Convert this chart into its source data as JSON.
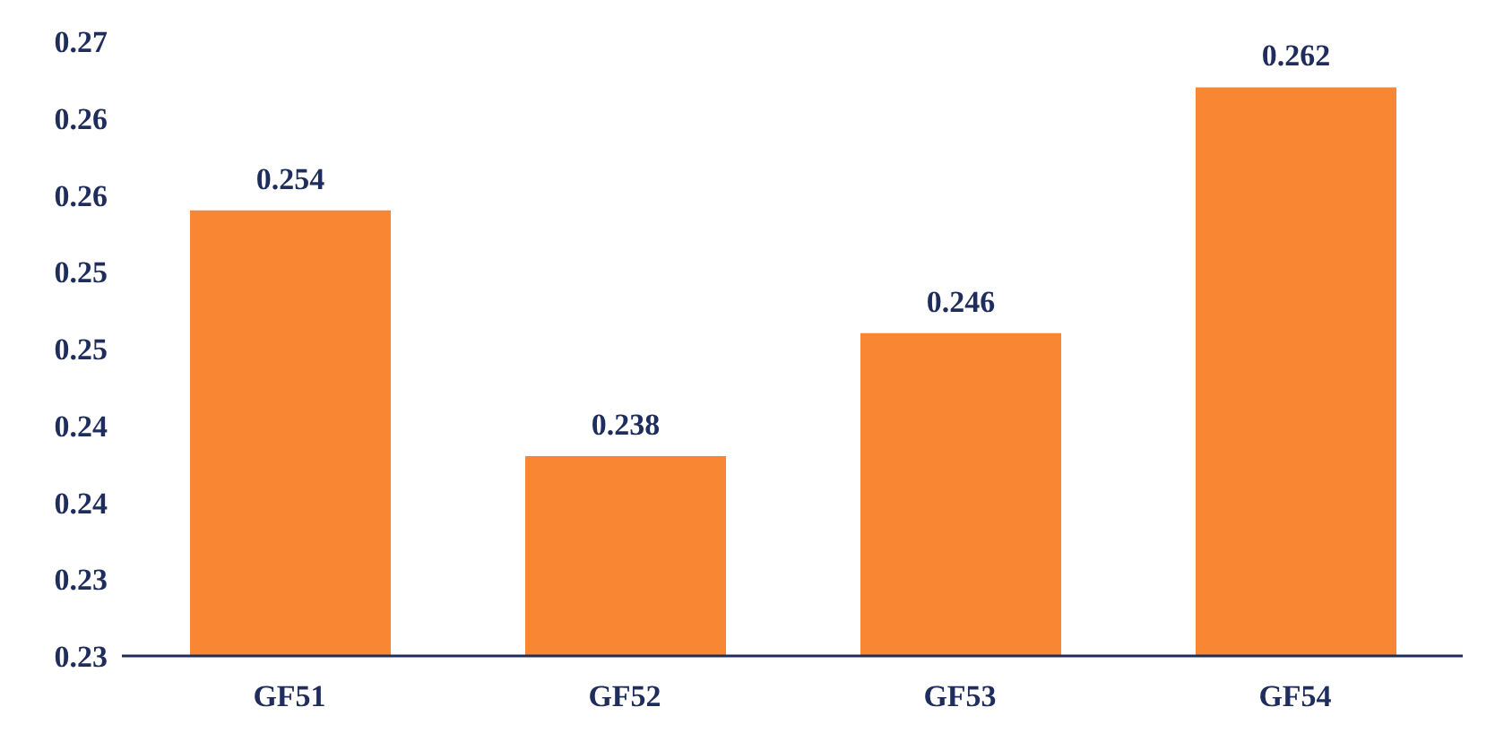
{
  "chart_data": {
    "type": "bar",
    "categories": [
      "GF51",
      "GF52",
      "GF53",
      "GF54"
    ],
    "values": [
      0.254,
      0.238,
      0.246,
      0.262
    ],
    "color": "#f98632",
    "ylim": [
      0.225,
      0.265
    ],
    "yticks": [
      {
        "value": 0.225,
        "label": "0.23"
      },
      {
        "value": 0.23,
        "label": "0.23"
      },
      {
        "value": 0.235,
        "label": "0.24"
      },
      {
        "value": 0.24,
        "label": "0.24"
      },
      {
        "value": 0.245,
        "label": "0.25"
      },
      {
        "value": 0.25,
        "label": "0.25"
      },
      {
        "value": 0.255,
        "label": "0.26"
      },
      {
        "value": 0.26,
        "label": "0.26"
      },
      {
        "value": 0.265,
        "label": "0.27"
      }
    ],
    "data_labels": true
  }
}
